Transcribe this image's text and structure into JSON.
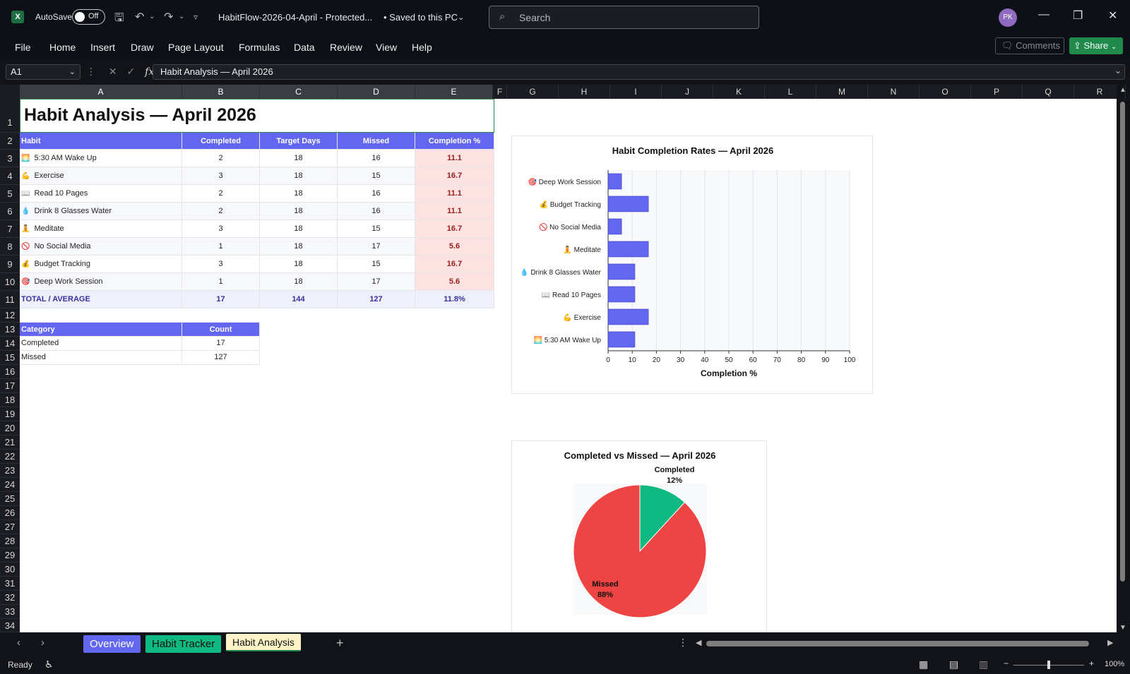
{
  "titlebar": {
    "app_logo": "X",
    "autosave_label": "AutoSave",
    "autosave_state": "Off",
    "document_title": "HabitFlow-2026-04-April  -  Protected...",
    "save_status": "• Saved to this PC",
    "search_placeholder": "Search",
    "avatar_initials": "PK"
  },
  "menu": [
    "File",
    "Home",
    "Insert",
    "Draw",
    "Page Layout",
    "Formulas",
    "Data",
    "Review",
    "View",
    "Help"
  ],
  "ribbon_buttons": {
    "comments": "Comments",
    "share": "Share"
  },
  "formula_bar": {
    "name_box": "A1",
    "fx": "fx",
    "content": "Habit Analysis — April 2026"
  },
  "columns": [
    "A",
    "B",
    "C",
    "D",
    "E",
    "F",
    "G",
    "H",
    "I",
    "J",
    "K",
    "L",
    "M",
    "N",
    "O",
    "P",
    "Q",
    "R"
  ],
  "rows": [
    "1",
    "2",
    "3",
    "4",
    "5",
    "6",
    "7",
    "8",
    "9",
    "10",
    "11",
    "12",
    "13",
    "14",
    "15",
    "16",
    "17",
    "18",
    "19",
    "20",
    "21",
    "22",
    "23",
    "24",
    "25",
    "26",
    "27",
    "28",
    "29",
    "30",
    "31",
    "32",
    "33",
    "34"
  ],
  "sheet": {
    "title": "Habit Analysis  —  April 2026",
    "table_headers": [
      "Habit",
      "Completed",
      "Target Days",
      "Missed",
      "Completion %"
    ],
    "habits": [
      {
        "icon": "🌅",
        "name": "5:30 AM Wake Up",
        "completed": "2",
        "target": "18",
        "missed": "16",
        "pct": "11.1"
      },
      {
        "icon": "💪",
        "name": "Exercise",
        "completed": "3",
        "target": "18",
        "missed": "15",
        "pct": "16.7"
      },
      {
        "icon": "📖",
        "name": "Read 10 Pages",
        "completed": "2",
        "target": "18",
        "missed": "16",
        "pct": "11.1"
      },
      {
        "icon": "💧",
        "name": "Drink 8 Glasses Water",
        "completed": "2",
        "target": "18",
        "missed": "16",
        "pct": "11.1"
      },
      {
        "icon": "🧘",
        "name": "Meditate",
        "completed": "3",
        "target": "18",
        "missed": "15",
        "pct": "16.7"
      },
      {
        "icon": "🚫",
        "name": "No Social Media",
        "completed": "1",
        "target": "18",
        "missed": "17",
        "pct": "5.6"
      },
      {
        "icon": "💰",
        "name": "Budget Tracking",
        "completed": "3",
        "target": "18",
        "missed": "15",
        "pct": "16.7"
      },
      {
        "icon": "🎯",
        "name": "Deep Work Session",
        "completed": "1",
        "target": "18",
        "missed": "17",
        "pct": "5.6"
      }
    ],
    "total": {
      "label": "TOTAL / AVERAGE",
      "completed": "17",
      "target": "144",
      "missed": "127",
      "pct": "11.8%"
    },
    "category_headers": [
      "Category",
      "Count"
    ],
    "categories": [
      {
        "name": "Completed",
        "count": "17"
      },
      {
        "name": "Missed",
        "count": "127"
      }
    ]
  },
  "chart_data": [
    {
      "type": "bar",
      "orientation": "horizontal",
      "title": "Habit Completion Rates — April 2026",
      "xlabel": "Completion %",
      "ylabel": "",
      "xlim": [
        0,
        100
      ],
      "xticks": [
        "0",
        "10",
        "20",
        "30",
        "40",
        "50",
        "60",
        "70",
        "80",
        "90",
        "100"
      ],
      "grid": true,
      "categories": [
        "🎯  Deep Work Session",
        "💰  Budget Tracking",
        "🚫  No Social Media",
        "🧘  Meditate",
        "💧  Drink 8 Glasses Water",
        "📖  Read 10 Pages",
        "💪  Exercise",
        "🌅  5:30 AM Wake Up"
      ],
      "values": [
        5.6,
        16.7,
        5.6,
        16.7,
        11.1,
        11.1,
        16.7,
        11.1
      ],
      "bar_color": "#6366f1"
    },
    {
      "type": "pie",
      "title": "Completed vs Missed — April 2026",
      "slices": [
        {
          "label": "Completed",
          "value": 17,
          "pct_label": "12%",
          "color": "#10b981"
        },
        {
          "label": "Missed",
          "value": 127,
          "pct_label": "88%",
          "color": "#ef4444"
        }
      ]
    }
  ],
  "tabs": [
    {
      "label": "Overview",
      "color": "#6366f1",
      "text_color": "#ffffff",
      "active": false
    },
    {
      "label": "Habit Tracker",
      "color": "#10b981",
      "text_color": "#111111",
      "active": false
    },
    {
      "label": "Habit Analysis",
      "color": "#fef3c7",
      "text_color": "#111111",
      "active": true
    }
  ],
  "status": {
    "mode": "Ready",
    "zoom": "100%"
  }
}
